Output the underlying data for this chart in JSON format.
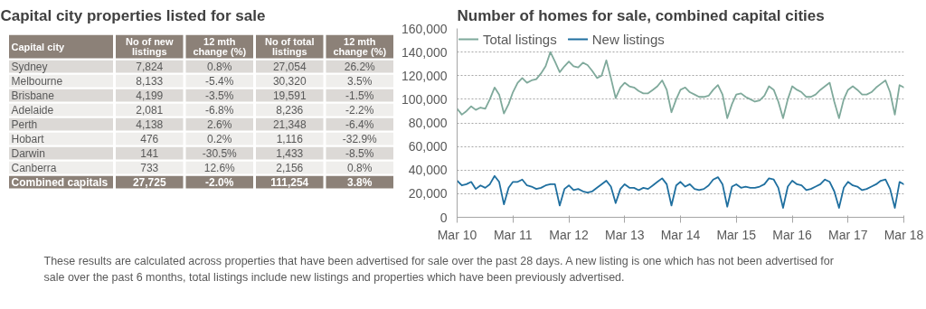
{
  "chart_data": [
    {
      "type": "heatmap",
      "title": "Capital city properties listed for sale",
      "ylabel": "Capital city",
      "categories": [
        "No of new listings",
        "12 mth change (%)",
        "No of total listings",
        "12 mth change (%)"
      ],
      "y_categories": [
        "Sydney",
        "Melbourne",
        "Brisbane",
        "Adelaide",
        "Perth",
        "Hobart",
        "Darwin",
        "Canberra",
        "Combined capitals"
      ],
      "cells": [
        [
          7824,
          0.8,
          27054,
          26.2
        ],
        [
          8133,
          -5.4,
          30320,
          3.5
        ],
        [
          4199,
          -3.5,
          19591,
          -1.5
        ],
        [
          2081,
          -6.8,
          8236,
          -2.2
        ],
        [
          4138,
          2.6,
          21348,
          -6.4
        ],
        [
          476,
          0.2,
          1116,
          -32.9
        ],
        [
          141,
          -30.5,
          1433,
          -8.5
        ],
        [
          733,
          12.6,
          2156,
          0.8
        ],
        [
          27725,
          -2.0,
          111254,
          3.8
        ]
      ],
      "cell_labels": [
        [
          "7,824",
          "0.8%",
          "27,054",
          "26.2%"
        ],
        [
          "8,133",
          "-5.4%",
          "30,320",
          "3.5%"
        ],
        [
          "4,199",
          "-3.5%",
          "19,591",
          "-1.5%"
        ],
        [
          "2,081",
          "-6.8%",
          "8,236",
          "-2.2%"
        ],
        [
          "4,138",
          "2.6%",
          "21,348",
          "-6.4%"
        ],
        [
          "476",
          "0.2%",
          "1,116",
          "-32.9%"
        ],
        [
          "141",
          "-30.5%",
          "1,433",
          "-8.5%"
        ],
        [
          "733",
          "12.6%",
          "2,156",
          "0.8%"
        ],
        [
          "27,725",
          "-2.0%",
          "111,254",
          "3.8%"
        ]
      ]
    },
    {
      "type": "line",
      "title": "Number of homes for sale, combined capital cities",
      "legend": "top left",
      "grid": "y",
      "line_style": "solid",
      "x": [
        "2010-03",
        "2010-04",
        "2010-05",
        "2010-06",
        "2010-07",
        "2010-08",
        "2010-09",
        "2010-10",
        "2010-11",
        "2010-12",
        "2011-01",
        "2011-02",
        "2011-03",
        "2011-04",
        "2011-05",
        "2011-06",
        "2011-07",
        "2011-08",
        "2011-09",
        "2011-10",
        "2011-11",
        "2011-12",
        "2012-01",
        "2012-02",
        "2012-03",
        "2012-04",
        "2012-05",
        "2012-06",
        "2012-07",
        "2012-08",
        "2012-09",
        "2012-10",
        "2012-11",
        "2012-12",
        "2013-01",
        "2013-02",
        "2013-03",
        "2013-04",
        "2013-05",
        "2013-06",
        "2013-07",
        "2013-08",
        "2013-09",
        "2013-10",
        "2013-11",
        "2013-12",
        "2014-01",
        "2014-02",
        "2014-03",
        "2014-04",
        "2014-05",
        "2014-06",
        "2014-07",
        "2014-08",
        "2014-09",
        "2014-10",
        "2014-11",
        "2014-12",
        "2015-01",
        "2015-02",
        "2015-03",
        "2015-04",
        "2015-05",
        "2015-06",
        "2015-07",
        "2015-08",
        "2015-09",
        "2015-10",
        "2015-11",
        "2015-12",
        "2016-01",
        "2016-02",
        "2016-03",
        "2016-04",
        "2016-05",
        "2016-06",
        "2016-07",
        "2016-08",
        "2016-09",
        "2016-10",
        "2016-11",
        "2016-12",
        "2017-01",
        "2017-02",
        "2017-03",
        "2017-04",
        "2017-05",
        "2017-06",
        "2017-07",
        "2017-08",
        "2017-09",
        "2017-10",
        "2017-11",
        "2017-12",
        "2018-01",
        "2018-02",
        "2018-03"
      ],
      "series": [
        {
          "name": "Total listings",
          "color": "#7fa99b",
          "values": [
            92000,
            87000,
            90000,
            94000,
            91000,
            93000,
            92000,
            100000,
            110000,
            104000,
            88000,
            96000,
            106000,
            114000,
            118000,
            114000,
            116000,
            117000,
            122000,
            128000,
            140000,
            132000,
            123000,
            128000,
            132000,
            128000,
            127000,
            131000,
            129000,
            124000,
            118000,
            120000,
            133000,
            118000,
            101000,
            110000,
            114000,
            111000,
            110000,
            107000,
            105000,
            105000,
            108000,
            111000,
            116000,
            108000,
            89000,
            100000,
            108000,
            110000,
            106000,
            104000,
            102000,
            102000,
            103000,
            108000,
            112000,
            104000,
            84000,
            96000,
            104000,
            105000,
            102000,
            100000,
            98000,
            99000,
            103000,
            111000,
            108000,
            98000,
            84000,
            100000,
            111000,
            108000,
            106000,
            102000,
            102000,
            104000,
            108000,
            111000,
            114000,
            98000,
            84000,
            100000,
            108000,
            111000,
            108000,
            104000,
            104000,
            106000,
            110000,
            113000,
            116000,
            106000,
            87000,
            112000,
            110000
          ]
        },
        {
          "name": "New listings",
          "color": "#1f6f9f",
          "values": [
            31000,
            27000,
            28000,
            30000,
            24000,
            27000,
            25000,
            28000,
            35000,
            30000,
            11000,
            25000,
            30000,
            30000,
            32000,
            27000,
            26000,
            24000,
            25000,
            27000,
            28000,
            28000,
            10000,
            24000,
            27000,
            23000,
            24000,
            22000,
            21000,
            22000,
            25000,
            28000,
            31000,
            26000,
            12000,
            24000,
            28000,
            25000,
            25000,
            23000,
            25000,
            24000,
            27000,
            30000,
            33000,
            28000,
            10000,
            27000,
            30000,
            26000,
            28000,
            24000,
            23000,
            24000,
            27000,
            32000,
            34000,
            28000,
            9000,
            26000,
            28000,
            25000,
            26000,
            25000,
            25000,
            26000,
            28000,
            33000,
            32000,
            25000,
            8000,
            26000,
            31000,
            28000,
            27000,
            23000,
            24000,
            26000,
            28000,
            32000,
            30000,
            22000,
            8000,
            25000,
            30000,
            27000,
            26000,
            23000,
            24000,
            26000,
            28000,
            31000,
            32000,
            24000,
            8000,
            30000,
            28000
          ]
        }
      ],
      "xlim": [
        "2010-03",
        "2018-03"
      ],
      "xticks": [
        {
          "value": "2010-03",
          "label": "Mar 10"
        },
        {
          "value": "2011-03",
          "label": "Mar 11"
        },
        {
          "value": "2012-03",
          "label": "Mar 12"
        },
        {
          "value": "2013-03",
          "label": "Mar 13"
        },
        {
          "value": "2014-03",
          "label": "Mar 14"
        },
        {
          "value": "2015-03",
          "label": "Mar 15"
        },
        {
          "value": "2016-03",
          "label": "Mar 16"
        },
        {
          "value": "2017-03",
          "label": "Mar 17"
        },
        {
          "value": "2018-03",
          "label": "Mar 18"
        }
      ],
      "ylim": [
        0,
        160000
      ],
      "yticks": [
        {
          "value": 0,
          "label": "0"
        },
        {
          "value": 20000,
          "label": "20,000"
        },
        {
          "value": 40000,
          "label": "40,000"
        },
        {
          "value": 60000,
          "label": "60,000"
        },
        {
          "value": 80000,
          "label": "80,000"
        },
        {
          "value": 100000,
          "label": "100,000"
        },
        {
          "value": 120000,
          "label": "120,000"
        },
        {
          "value": 140000,
          "label": "140,000"
        },
        {
          "value": 160000,
          "label": "160,000"
        }
      ],
      "annotations": [
        "These results are calculated across properties that have been advertised for sale over the past 28 days.  A new listing is one which has not been advertised for sale over the past 6 months, total listings include new listings and properties which have been previously advertised."
      ]
    }
  ]
}
